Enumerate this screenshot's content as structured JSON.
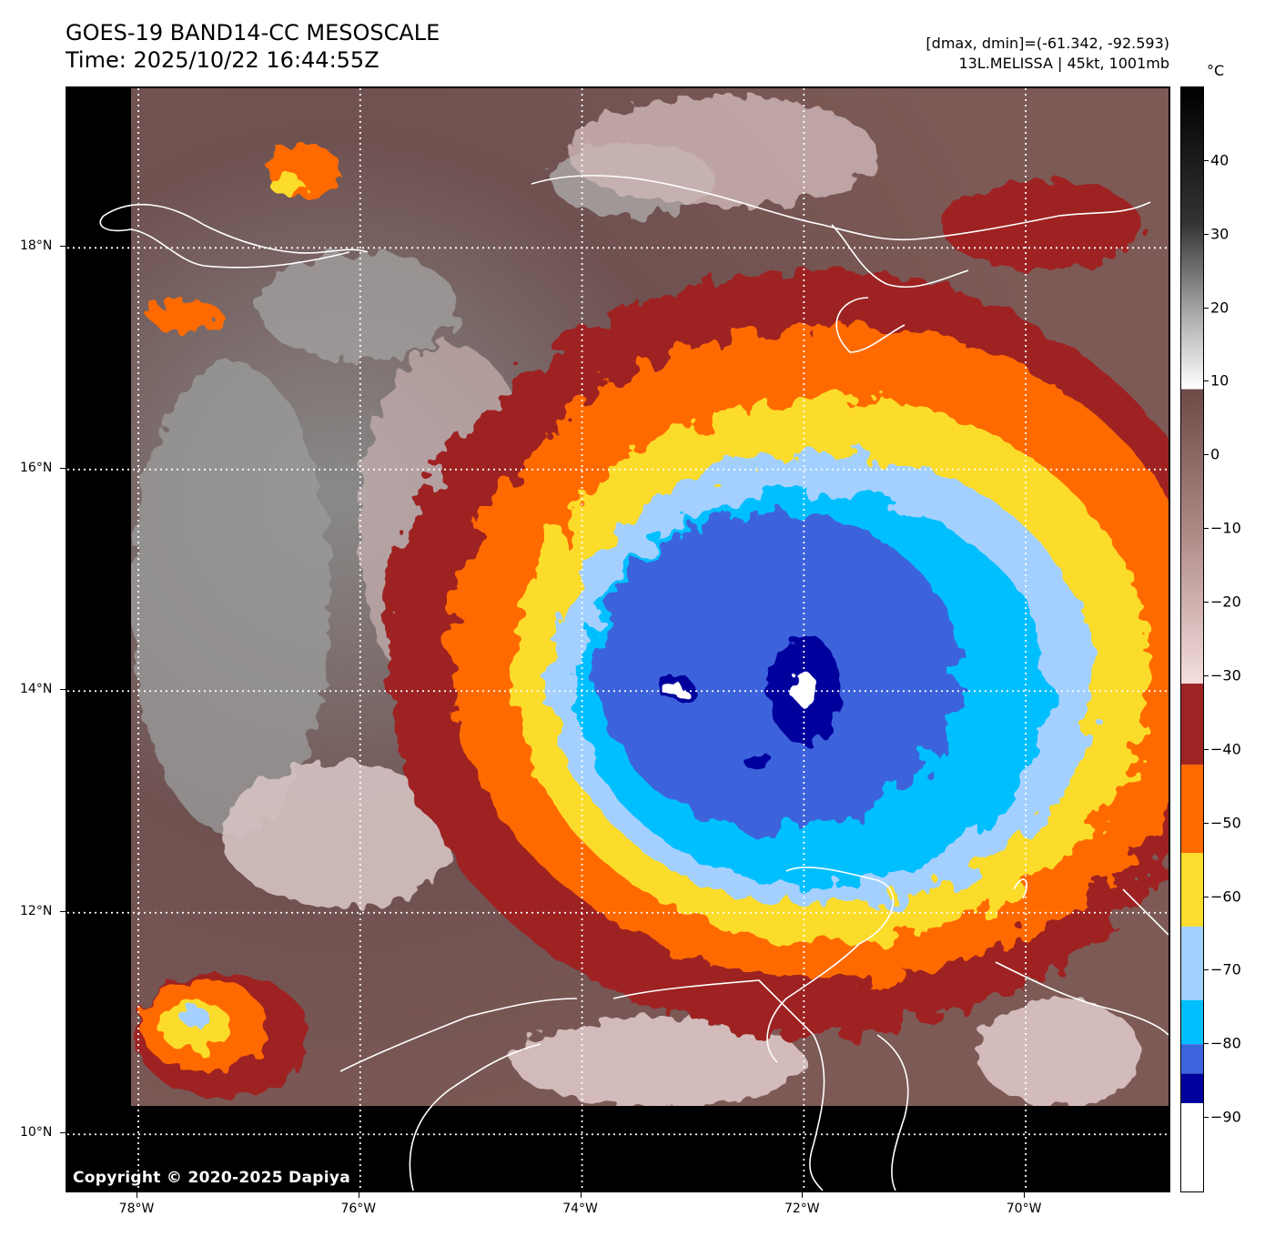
{
  "header": {
    "title_line1": "GOES-19 BAND14-CC MESOSCALE",
    "title_line2": "Time: 2025/10/22 16:44:55Z",
    "stats_line": "[dmax, dmin]=(-61.342, -92.593)",
    "storm_line": "13L.MELISSA | 45kt, 1001mb"
  },
  "map": {
    "copyright": "Copyright © 2020-2025 Dapiya",
    "lat_labels": [
      "18°N",
      "16°N",
      "14°N",
      "12°N",
      "10°N"
    ],
    "lon_labels": [
      "78°W",
      "76°W",
      "74°W",
      "72°W",
      "70°W"
    ],
    "lat_values": [
      18,
      16,
      14,
      12,
      10
    ],
    "lon_values": [
      -78,
      -76,
      -74,
      -72,
      -70
    ],
    "lat_range": [
      9.46,
      19.44
    ],
    "lon_range": [
      -78.64,
      -68.68
    ],
    "gridlines": "dotted white",
    "storm_center": {
      "lat": 14.0,
      "lon": -72.0
    }
  },
  "colorbar": {
    "unit": "°C",
    "range": [
      -100,
      50
    ],
    "labels": [
      "40",
      "30",
      "20",
      "10",
      "0",
      "−10",
      "−20",
      "−30",
      "−40",
      "−50",
      "−60",
      "−70",
      "−80",
      "−90"
    ],
    "tick_values": [
      40,
      30,
      20,
      10,
      0,
      -10,
      -20,
      -30,
      -40,
      -50,
      -60,
      -70,
      -80,
      -90
    ],
    "bands": [
      {
        "from": 9,
        "to": 50,
        "color": "#000000",
        "kind": "gradient-to-white"
      },
      {
        "from": -31,
        "to": 9,
        "color": "#6e4a46",
        "kind": "gradient-to-pink"
      },
      {
        "from": -42,
        "to": -31,
        "color": "#9e2424"
      },
      {
        "from": -54,
        "to": -42,
        "color": "#ff6a00"
      },
      {
        "from": -64,
        "to": -54,
        "color": "#fcdc2c"
      },
      {
        "from": -74,
        "to": -64,
        "color": "#a3d0ff"
      },
      {
        "from": -80,
        "to": -74,
        "color": "#00bfff"
      },
      {
        "from": -84,
        "to": -80,
        "color": "#3c64dc"
      },
      {
        "from": -88,
        "to": -84,
        "color": "#00009c"
      },
      {
        "from": -100,
        "to": -88,
        "color": "#ffffff"
      }
    ]
  }
}
